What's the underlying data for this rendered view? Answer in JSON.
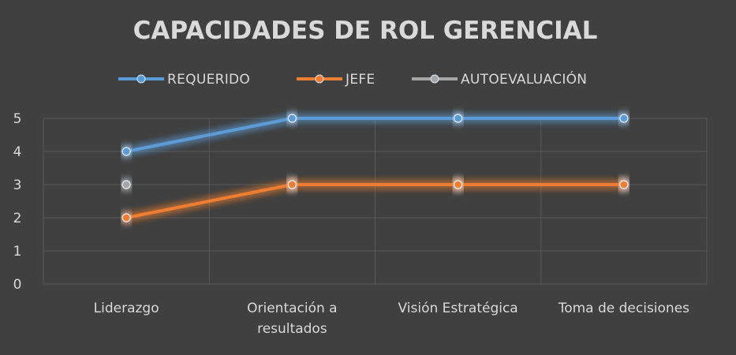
{
  "chart_data": {
    "type": "line",
    "title": "CAPACIDADES DE ROL GERENCIAL",
    "xlabel": "",
    "ylabel": "",
    "categories": [
      [
        "Liderazgo"
      ],
      [
        "Orientación a",
        "resultados"
      ],
      [
        "Visión Estratégica"
      ],
      [
        "Toma de decisiones"
      ]
    ],
    "series": [
      {
        "name": "REQUERIDO",
        "color": "#5b9bd5",
        "values": [
          4,
          5,
          5,
          5
        ]
      },
      {
        "name": "JEFE",
        "color": "#ed7d31",
        "values": [
          2,
          3,
          3,
          3
        ]
      },
      {
        "name": "AUTOEVALUACIÓN",
        "color": "#a5a5a5",
        "values": [
          3,
          3,
          3,
          3
        ]
      }
    ],
    "ylim": [
      0,
      5
    ],
    "yticks": [
      "0",
      "1",
      "2",
      "3",
      "4",
      "5"
    ],
    "grid": true,
    "legend": "top-center",
    "background": "#404040",
    "text_color": "#d9d9d9",
    "grid_color": "#595959"
  }
}
